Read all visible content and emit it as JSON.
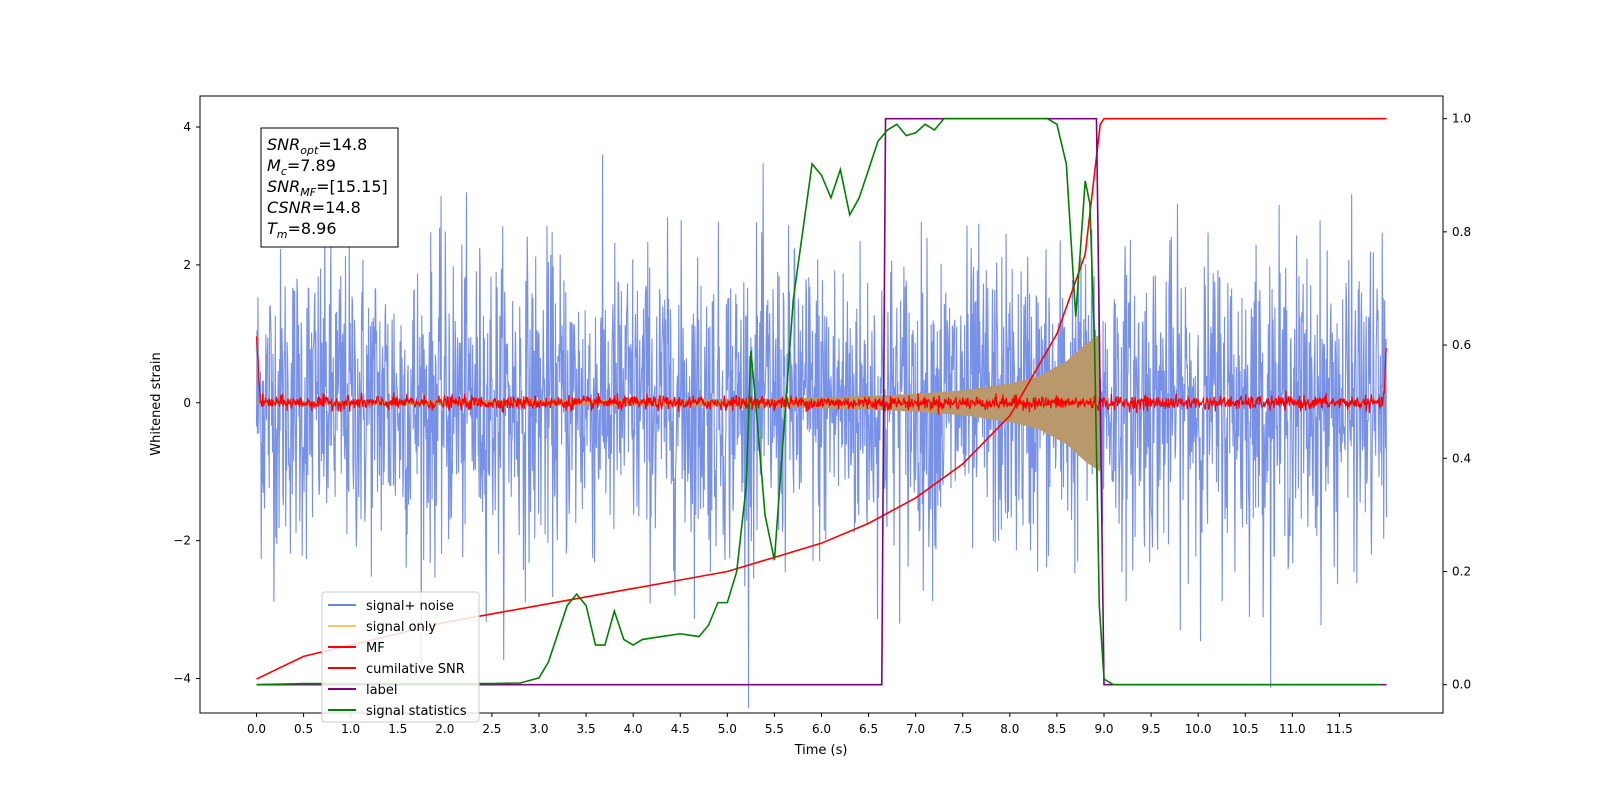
{
  "chart_data": {
    "type": "line",
    "xlabel": "Time (s)",
    "ylabel": "Whitened strain",
    "xlim": [
      -0.6,
      12.6
    ],
    "ylim": [
      -4.5,
      4.45
    ],
    "y2lim": [
      -0.05,
      1.04
    ],
    "x_ticks": [
      0.0,
      0.5,
      1.0,
      1.5,
      2.0,
      2.5,
      3.0,
      3.5,
      4.0,
      4.5,
      5.0,
      5.5,
      6.0,
      6.5,
      7.0,
      7.5,
      8.0,
      8.5,
      9.0,
      9.5,
      10.0,
      10.5,
      11.0,
      11.5
    ],
    "x_tick_labels": [
      "0.0",
      "0.5",
      "1.0",
      "1.5",
      "2.0",
      "2.5",
      "3.0",
      "3.5",
      "4.0",
      "4.5",
      "5.0",
      "5.5",
      "6.0",
      "6.5",
      "7.0",
      "7.5",
      "8.0",
      "8.5",
      "9.0",
      "9.5",
      "10.0",
      "10.5",
      "11.0",
      "11.5"
    ],
    "y_ticks": [
      4,
      2,
      0,
      -2,
      -4
    ],
    "y_tick_labels": [
      "4",
      "2",
      "0",
      "−2",
      "−4"
    ],
    "y2_ticks": [
      1.0,
      0.8,
      0.6,
      0.4,
      0.2,
      0.0
    ],
    "y2_tick_labels": [
      "1.0",
      "0.8",
      "0.6",
      "0.4",
      "0.2",
      "0.0"
    ],
    "legend_position": "lower-left",
    "grid": false,
    "info_box": [
      {
        "base": "SNR",
        "sub": "opt",
        "value": "=14.8"
      },
      {
        "base": "M",
        "sub": "c",
        "value": "=7.89"
      },
      {
        "base": "SNR",
        "sub": "MF",
        "value": "=[15.15]"
      },
      {
        "base": "CSNR",
        "sub": "",
        "value": "=14.8"
      },
      {
        "base": "T",
        "sub": "m",
        "value": "=8.96"
      }
    ],
    "series": [
      {
        "name": "signal+ noise",
        "axis": "left",
        "color": "#6b87e6",
        "description": "white noise",
        "x_range": [
          0.0,
          12.0
        ],
        "noise_sigma": 1.1
      },
      {
        "name": "signal only",
        "axis": "left",
        "color": "#f5c96a",
        "description": "chirp amplitude envelope",
        "x_range": [
          0.0,
          8.96
        ],
        "amplitude": [
          [
            0.0,
            0.02
          ],
          [
            5.5,
            0.06
          ],
          [
            6.5,
            0.1
          ],
          [
            7.0,
            0.13
          ],
          [
            7.5,
            0.18
          ],
          [
            8.0,
            0.28
          ],
          [
            8.3,
            0.38
          ],
          [
            8.6,
            0.6
          ],
          [
            8.8,
            0.85
          ],
          [
            8.96,
            1.0
          ]
        ]
      },
      {
        "name": "MF",
        "axis": "left",
        "color": "#ff0000",
        "description": "matched filter output",
        "x_range": [
          0.0,
          12.0
        ],
        "noise_sigma": 0.05,
        "edge_values": [
          [
            0.0,
            1.0
          ],
          [
            12.0,
            0.9
          ]
        ]
      },
      {
        "name": "cumilative SNR",
        "axis": "right",
        "color": "#ff0000",
        "x": [
          0.0,
          0.5,
          1.0,
          1.5,
          2.0,
          2.5,
          3.0,
          3.5,
          4.0,
          4.5,
          5.0,
          5.5,
          6.0,
          6.5,
          7.0,
          7.5,
          8.0,
          8.5,
          8.8,
          8.96,
          9.0,
          12.0
        ],
        "values": [
          0.01,
          0.05,
          0.07,
          0.09,
          0.11,
          0.125,
          0.14,
          0.155,
          0.17,
          0.185,
          0.2,
          0.225,
          0.25,
          0.285,
          0.33,
          0.39,
          0.475,
          0.62,
          0.76,
          0.99,
          1.0,
          1.0
        ]
      },
      {
        "name": "label",
        "axis": "right",
        "color": "#800080",
        "x": [
          0.0,
          6.64,
          6.68,
          8.92,
          9.0,
          12.0
        ],
        "values": [
          0.0,
          0.0,
          1.0,
          1.0,
          0.0,
          0.0
        ]
      },
      {
        "name": "signal statistics",
        "axis": "right",
        "color": "#008000",
        "x": [
          0.0,
          0.5,
          1.0,
          1.5,
          2.0,
          2.5,
          2.8,
          3.0,
          3.1,
          3.2,
          3.3,
          3.4,
          3.5,
          3.6,
          3.7,
          3.8,
          3.9,
          4.0,
          4.1,
          4.3,
          4.5,
          4.7,
          4.8,
          4.9,
          5.0,
          5.1,
          5.2,
          5.25,
          5.3,
          5.4,
          5.5,
          5.6,
          5.7,
          5.8,
          5.9,
          6.0,
          6.1,
          6.2,
          6.3,
          6.4,
          6.5,
          6.6,
          6.7,
          6.8,
          6.9,
          7.0,
          7.1,
          7.2,
          7.3,
          7.5,
          7.8,
          8.2,
          8.4,
          8.5,
          8.6,
          8.7,
          8.8,
          8.85,
          8.9,
          8.95,
          9.0,
          9.1,
          9.5,
          10.0,
          11.0,
          11.95
        ],
        "values": [
          0.0,
          0.002,
          0.002,
          0.002,
          0.002,
          0.002,
          0.003,
          0.012,
          0.04,
          0.09,
          0.14,
          0.16,
          0.14,
          0.07,
          0.07,
          0.13,
          0.08,
          0.07,
          0.08,
          0.085,
          0.09,
          0.085,
          0.105,
          0.145,
          0.145,
          0.2,
          0.35,
          0.59,
          0.5,
          0.3,
          0.22,
          0.45,
          0.68,
          0.8,
          0.92,
          0.9,
          0.86,
          0.91,
          0.83,
          0.86,
          0.91,
          0.96,
          0.98,
          0.99,
          0.97,
          0.975,
          0.99,
          0.98,
          1.0,
          1.0,
          1.0,
          1.0,
          1.0,
          0.99,
          0.92,
          0.65,
          0.89,
          0.85,
          0.6,
          0.14,
          0.01,
          0.0,
          0.0,
          0.0,
          0.0,
          0.0
        ]
      }
    ]
  },
  "legend": [
    {
      "label": "signal+ noise",
      "color": "#6b87e6"
    },
    {
      "label": "signal only",
      "color": "#f5c96a"
    },
    {
      "label": "MF",
      "color": "#ff0000"
    },
    {
      "label": "cumilative SNR",
      "color": "#ff0000"
    },
    {
      "label": "label",
      "color": "#800080"
    },
    {
      "label": "signal statistics",
      "color": "#008000"
    }
  ]
}
